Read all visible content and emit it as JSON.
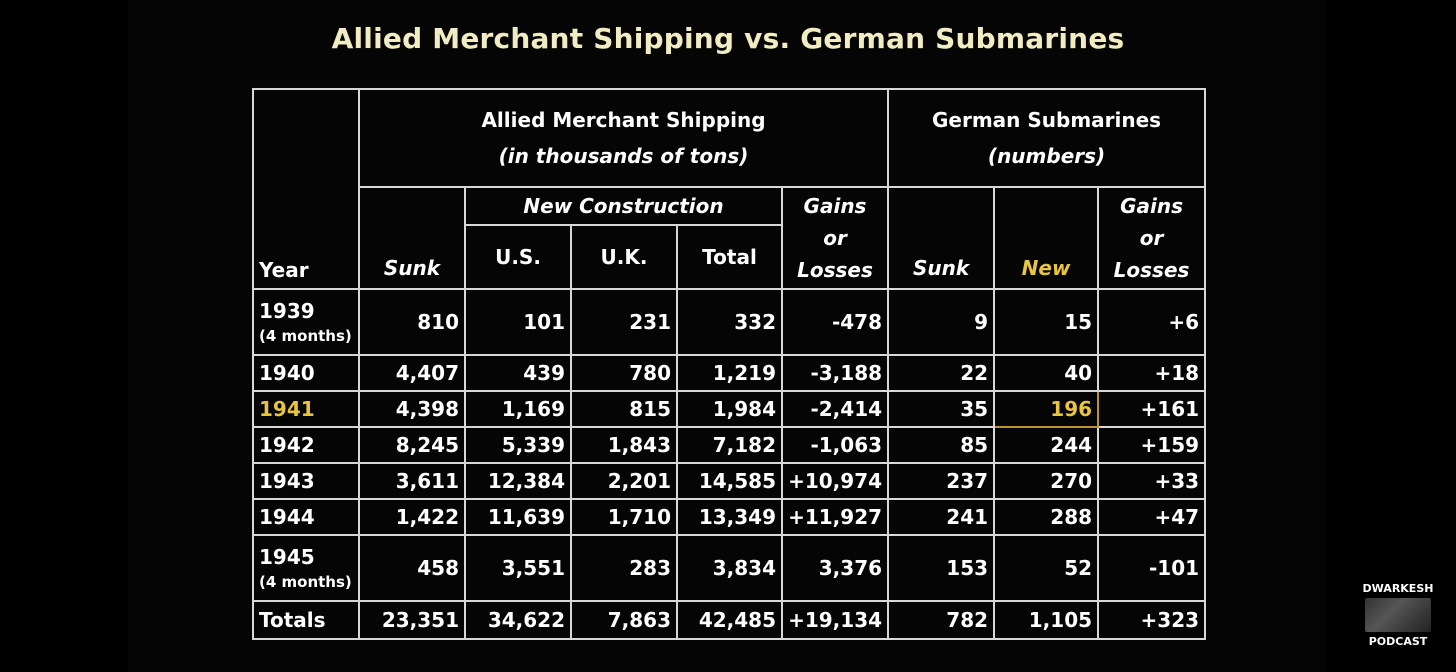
{
  "title": "Allied Merchant Shipping vs. German Submarines",
  "colors": {
    "title": "#f2ecc2",
    "highlight": "#e8c440",
    "background": "#000000"
  },
  "headers": {
    "allied": "Allied Merchant Shipping",
    "allied_unit": "(in thousands of tons)",
    "german": "German Submarines",
    "german_unit": "(numbers)",
    "new_construction": "New Construction",
    "year": "Year",
    "sunk": "Sunk",
    "us": "U.S.",
    "uk": "U.K.",
    "total": "Total",
    "gains_1": "Gains",
    "gains_2": "or",
    "gains_3": "Losses",
    "sub_sunk": "Sunk",
    "sub_new": "New",
    "sub_gains_1": "Gains",
    "sub_gains_2": "or",
    "sub_gains_3": "Losses"
  },
  "chart_data": {
    "type": "table",
    "title": "Allied Merchant Shipping vs. German Submarines",
    "rows": [
      {
        "year": "1939",
        "note": "(4 months)",
        "sunk": "810",
        "us": "101",
        "uk": "231",
        "total": "332",
        "gains": "-478",
        "sub_sunk": "9",
        "sub_new": "15",
        "sub_gains": "+6"
      },
      {
        "year": "1940",
        "note": "",
        "sunk": "4,407",
        "us": "439",
        "uk": "780",
        "total": "1,219",
        "gains": "-3,188",
        "sub_sunk": "22",
        "sub_new": "40",
        "sub_gains": "+18"
      },
      {
        "year": "1941",
        "note": "",
        "sunk": "4,398",
        "us": "1,169",
        "uk": "815",
        "total": "1,984",
        "gains": "-2,414",
        "sub_sunk": "35",
        "sub_new": "196",
        "sub_gains": "+161"
      },
      {
        "year": "1942",
        "note": "",
        "sunk": "8,245",
        "us": "5,339",
        "uk": "1,843",
        "total": "7,182",
        "gains": "-1,063",
        "sub_sunk": "85",
        "sub_new": "244",
        "sub_gains": "+159"
      },
      {
        "year": "1943",
        "note": "",
        "sunk": "3,611",
        "us": "12,384",
        "uk": "2,201",
        "total": "14,585",
        "gains": "+10,974",
        "sub_sunk": "237",
        "sub_new": "270",
        "sub_gains": "+33"
      },
      {
        "year": "1944",
        "note": "",
        "sunk": "1,422",
        "us": "11,639",
        "uk": "1,710",
        "total": "13,349",
        "gains": "+11,927",
        "sub_sunk": "241",
        "sub_new": "288",
        "sub_gains": "+47"
      },
      {
        "year": "1945",
        "note": "(4 months)",
        "sunk": "458",
        "us": "3,551",
        "uk": "283",
        "total": "3,834",
        "gains": "3,376",
        "sub_sunk": "153",
        "sub_new": "52",
        "sub_gains": "-101"
      },
      {
        "year": "Totals",
        "note": "",
        "sunk": "23,351",
        "us": "34,622",
        "uk": "7,863",
        "total": "42,485",
        "gains": "+19,134",
        "sub_sunk": "782",
        "sub_new": "1,105",
        "sub_gains": "+323"
      }
    ],
    "highlighted_row": "1941",
    "highlighted_cell": "196"
  },
  "logo": {
    "top": "DWARKESH",
    "bottom": "PODCAST"
  }
}
